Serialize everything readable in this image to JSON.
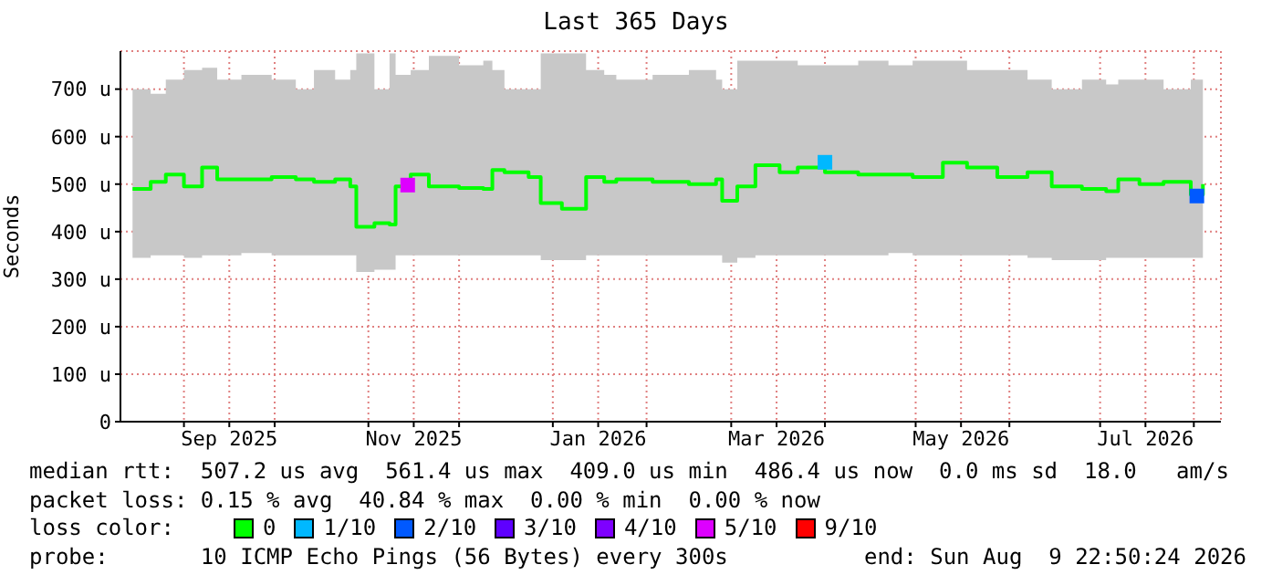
{
  "chart_data": {
    "type": "step",
    "title": "Last 365 Days",
    "ylabel": "Seconds",
    "legend_title": "loss color:",
    "legend": "bottom",
    "grid": true,
    "xlim": [
      "2025-08-11",
      "2026-08-09T22:50"
    ],
    "xticks": [
      {
        "value": "2025-09-01",
        "label": null
      },
      {
        "value": "2025-09-16",
        "label": "Sep 2025"
      },
      {
        "value": "2025-10-01",
        "label": null
      },
      {
        "value": "2025-11-01",
        "label": null
      },
      {
        "value": "2025-11-16",
        "label": "Nov 2025"
      },
      {
        "value": "2025-12-01",
        "label": null
      },
      {
        "value": "2026-01-01",
        "label": null
      },
      {
        "value": "2026-01-16",
        "label": "Jan 2026"
      },
      {
        "value": "2026-02-01",
        "label": null
      },
      {
        "value": "2026-03-01",
        "label": null
      },
      {
        "value": "2026-03-16",
        "label": "Mar 2026"
      },
      {
        "value": "2026-04-01",
        "label": null
      },
      {
        "value": "2026-05-01",
        "label": null
      },
      {
        "value": "2026-05-16",
        "label": "May 2026"
      },
      {
        "value": "2026-06-01",
        "label": null
      },
      {
        "value": "2026-07-01",
        "label": null
      },
      {
        "value": "2026-07-16",
        "label": "Jul 2026"
      },
      {
        "value": "2026-08-01",
        "label": null
      }
    ],
    "ylim": [
      0,
      780
    ],
    "yticks": [
      0,
      {
        "value": 100,
        "label": "100 u"
      },
      {
        "value": 200,
        "label": "200 u"
      },
      {
        "value": 300,
        "label": "300 u"
      },
      {
        "value": 400,
        "label": "400 u"
      },
      {
        "value": 500,
        "label": "500 u"
      },
      {
        "value": 600,
        "label": "600 u"
      },
      {
        "value": 700,
        "label": "700 u"
      }
    ],
    "series": [
      {
        "name": "0",
        "color": "#00ff00",
        "x": [
          "2025-08-15",
          "2025-08-21",
          "2025-08-26",
          "2025-09-01",
          "2025-09-07",
          "2025-09-12",
          "2025-09-20",
          "2025-09-30",
          "2025-10-08",
          "2025-10-14",
          "2025-10-21",
          "2025-10-26",
          "2025-10-28",
          "2025-11-03",
          "2025-11-08",
          "2025-11-10",
          "2025-11-15",
          "2025-11-21",
          "2025-12-01",
          "2025-12-09",
          "2025-12-12",
          "2025-12-16",
          "2025-12-24",
          "2025-12-28",
          "2026-01-04",
          "2026-01-09",
          "2026-01-12",
          "2026-01-18",
          "2026-01-22",
          "2026-02-03",
          "2026-02-15",
          "2026-02-24",
          "2026-02-26",
          "2026-03-03",
          "2026-03-09",
          "2026-03-17",
          "2026-03-23",
          "2026-04-01",
          "2026-04-12",
          "2026-04-22",
          "2026-04-30",
          "2026-05-10",
          "2026-05-18",
          "2026-05-28",
          "2026-06-07",
          "2026-06-15",
          "2026-06-25",
          "2026-07-03",
          "2026-07-07",
          "2026-07-14",
          "2026-07-22",
          "2026-07-31",
          "2026-08-04"
        ],
        "values": [
          490,
          505,
          520,
          495,
          535,
          510,
          510,
          515,
          510,
          505,
          510,
          495,
          410,
          418,
          415,
          495,
          520,
          495,
          492,
          490,
          530,
          525,
          515,
          460,
          448,
          448,
          515,
          505,
          510,
          505,
          500,
          510,
          465,
          495,
          540,
          525,
          535,
          525,
          520,
          520,
          515,
          545,
          535,
          515,
          525,
          495,
          490,
          485,
          510,
          500,
          505,
          478,
          500
        ],
        "lower": [
          345,
          350,
          350,
          345,
          350,
          350,
          355,
          350,
          350,
          350,
          350,
          350,
          315,
          320,
          320,
          350,
          350,
          350,
          350,
          350,
          350,
          350,
          350,
          340,
          340,
          340,
          350,
          350,
          350,
          350,
          350,
          350,
          335,
          345,
          350,
          350,
          350,
          350,
          350,
          355,
          350,
          350,
          350,
          350,
          345,
          340,
          340,
          345,
          345,
          345,
          345,
          345,
          345
        ],
        "upper": [
          700,
          690,
          720,
          740,
          745,
          720,
          730,
          720,
          700,
          740,
          720,
          740,
          775,
          700,
          775,
          730,
          740,
          770,
          750,
          760,
          740,
          700,
          700,
          775,
          775,
          775,
          740,
          730,
          720,
          730,
          740,
          720,
          700,
          760,
          760,
          760,
          750,
          750,
          760,
          750,
          760,
          760,
          740,
          740,
          720,
          700,
          720,
          710,
          720,
          720,
          700,
          720,
          720
        ]
      },
      {
        "name": "1/10",
        "type": "scatter",
        "color": "#00b8ff",
        "x": [
          "2026-04-01"
        ],
        "values": [
          546
        ]
      },
      {
        "name": "2/10",
        "type": "scatter",
        "color": "#0059ff",
        "x": [
          "2026-08-02"
        ],
        "values": [
          475
        ]
      },
      {
        "name": "3/10",
        "type": "scatter",
        "color": "#5e00ff"
      },
      {
        "name": "4/10",
        "type": "scatter",
        "color": "#7e00ff"
      },
      {
        "name": "5/10",
        "type": "scatter",
        "color": "#dd00ff",
        "x": [
          "2025-11-14"
        ],
        "values": [
          498
        ]
      },
      {
        "name": "9/10",
        "type": "scatter",
        "color": "#ff0000"
      }
    ],
    "annotations": [
      "median rtt:  507.2 us avg  561.4 us max  409.0 us min  486.4 us now  0.0 ms sd  18.0   am/s",
      "packet loss: 0.15 % avg  40.84 % max  0.00 % min  0.00 % now",
      "probe:       10 ICMP Echo Pings (56 Bytes) every 300s",
      "end: Sun Aug  9 22:50:24 2026"
    ]
  }
}
